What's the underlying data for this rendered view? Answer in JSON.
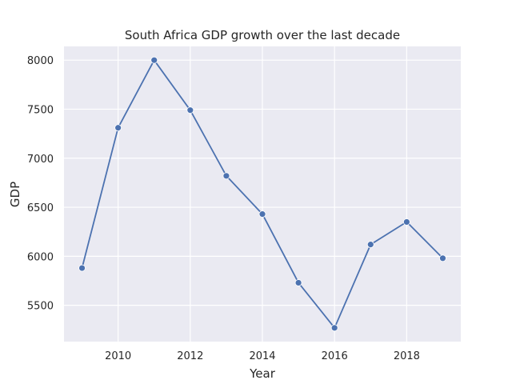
{
  "chart_data": {
    "type": "line",
    "title": "South Africa GDP growth over the last decade",
    "xlabel": "Year",
    "ylabel": "GDP",
    "x": [
      2009,
      2010,
      2011,
      2012,
      2013,
      2014,
      2015,
      2016,
      2017,
      2018,
      2019
    ],
    "series": [
      {
        "values": [
          5880,
          7310,
          8000,
          7490,
          6820,
          6430,
          5730,
          5270,
          6120,
          6350,
          5980
        ]
      }
    ],
    "xlim": [
      2008.5,
      2019.5
    ],
    "ylim": [
      5130,
      8140
    ],
    "xticks": [
      2010,
      2012,
      2014,
      2016,
      2018
    ],
    "yticks": [
      5500,
      6000,
      6500,
      7000,
      7500,
      8000
    ],
    "grid": true,
    "colors": {
      "line": "#4c72b0",
      "plot_bg": "#eaeaf2",
      "grid": "#ffffff"
    }
  }
}
